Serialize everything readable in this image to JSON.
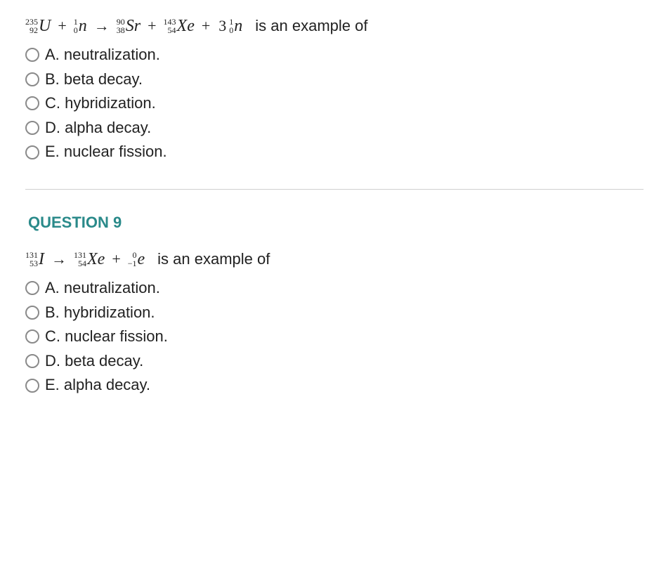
{
  "colors": {
    "text": "#222222",
    "header": "#2a8a8a",
    "radio_border": "#8a8a8a",
    "divider": "#cfcfcf",
    "background": "#ffffff"
  },
  "typography": {
    "body_family": "Arial, Helvetica, sans-serif",
    "math_family": "Times New Roman, Times, serif",
    "body_size_pt": 16,
    "header_size_pt": 16,
    "script_size_pt": 9
  },
  "q8": {
    "equation": {
      "terms": [
        {
          "mass": "235",
          "atomic": "92",
          "symbol": "U"
        },
        {
          "op": "+"
        },
        {
          "mass": "1",
          "atomic": "0",
          "symbol": "n"
        },
        {
          "op": "→"
        },
        {
          "mass": "90",
          "atomic": "38",
          "symbol": "Sr"
        },
        {
          "op": "+"
        },
        {
          "mass": "143",
          "atomic": "54",
          "symbol": "Xe"
        },
        {
          "op": "+"
        },
        {
          "coeff": "3"
        },
        {
          "mass": "1",
          "atomic": "0",
          "symbol": "n"
        }
      ],
      "trailing": "is an example of"
    },
    "options": {
      "A": "A. neutralization.",
      "B": "B. beta decay.",
      "C": "C. hybridization.",
      "D": "D. alpha decay.",
      "E": "E. nuclear fission."
    }
  },
  "q9": {
    "header": "QUESTION 9",
    "equation": {
      "terms": [
        {
          "mass": "131",
          "atomic": "53",
          "symbol": "I"
        },
        {
          "op": "→"
        },
        {
          "mass": "131",
          "atomic": "54",
          "symbol": "Xe"
        },
        {
          "op": "+"
        },
        {
          "mass": "0",
          "atomic": "−1",
          "symbol": "e"
        }
      ],
      "trailing": "is an example of"
    },
    "options": {
      "A": "A. neutralization.",
      "B": "B. hybridization.",
      "C": "C. nuclear fission.",
      "D": "D. beta decay.",
      "E": "E. alpha decay."
    }
  }
}
